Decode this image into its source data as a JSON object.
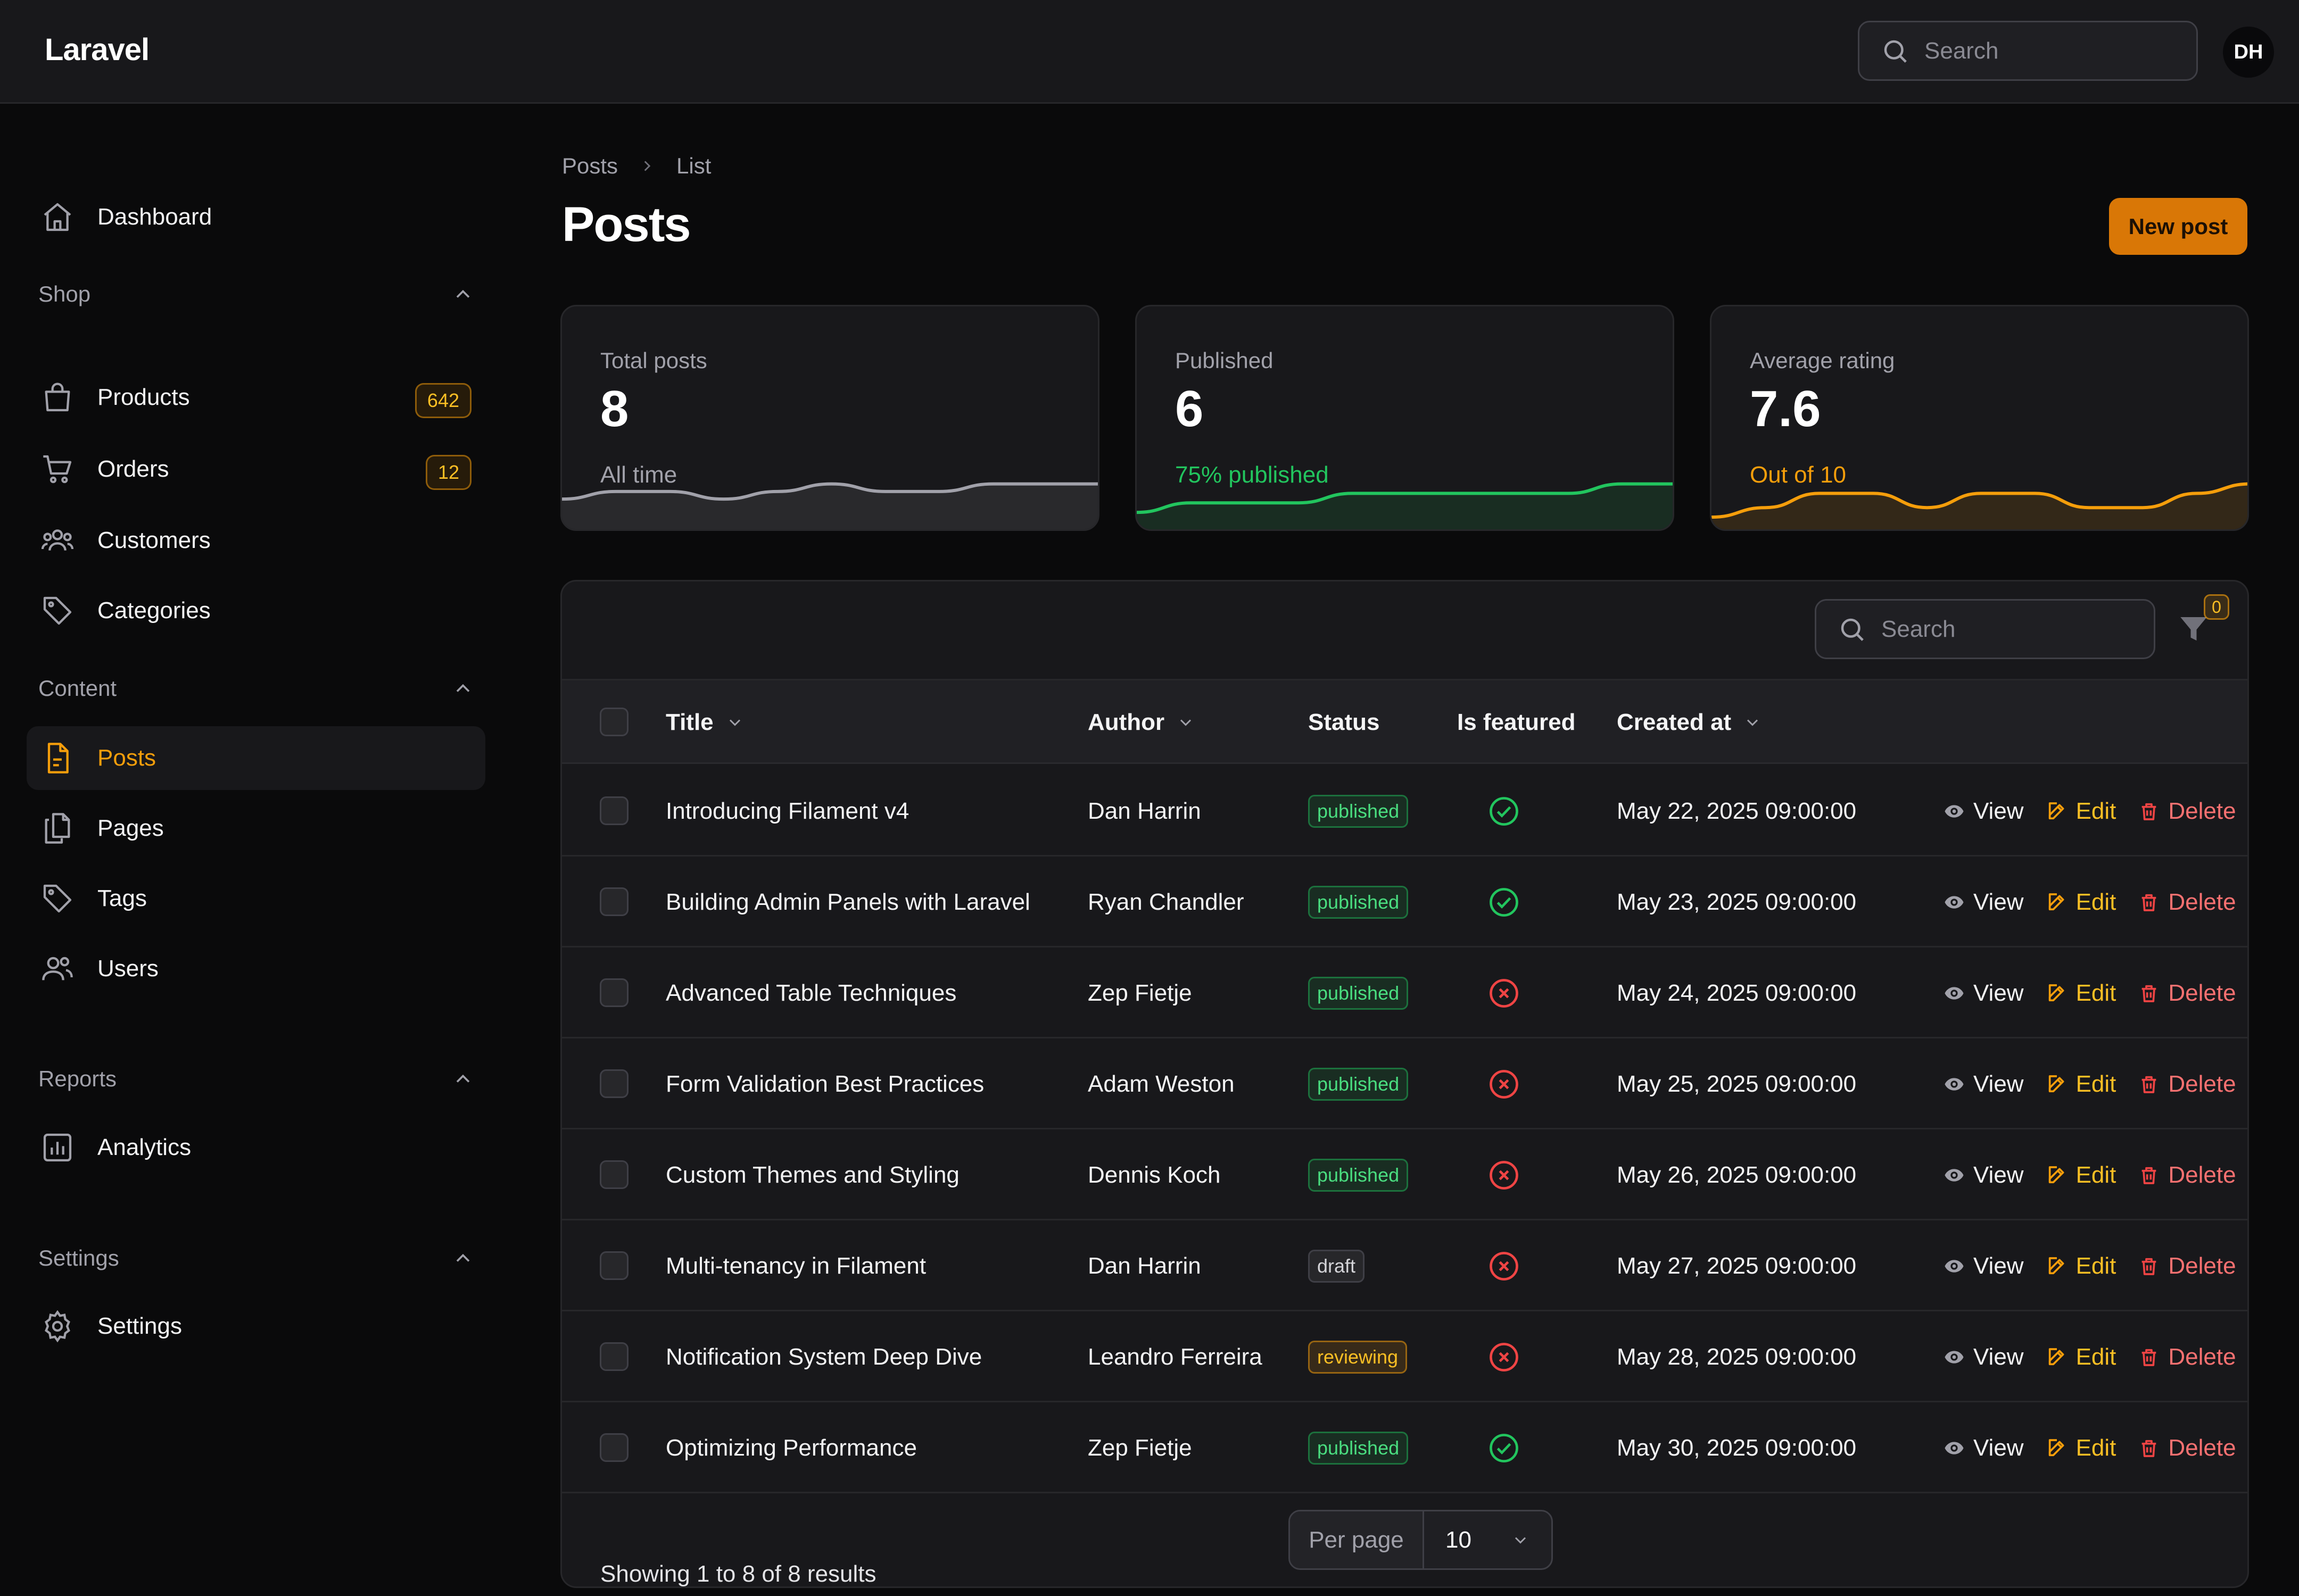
{
  "app": {
    "brand": "Laravel",
    "user_initials": "DH"
  },
  "topbar": {
    "search_placeholder": "Search"
  },
  "sidebar": {
    "dashboard": "Dashboard",
    "groups": {
      "shop": "Shop",
      "content": "Content",
      "reports": "Reports",
      "settings": "Settings"
    },
    "items": {
      "products": "Products",
      "products_badge": "642",
      "orders": "Orders",
      "orders_badge": "12",
      "customers": "Customers",
      "categories": "Categories",
      "posts": "Posts",
      "pages": "Pages",
      "tags": "Tags",
      "users": "Users",
      "analytics": "Analytics",
      "settings": "Settings"
    }
  },
  "breadcrumb": {
    "first": "Posts",
    "second": "List"
  },
  "header": {
    "title": "Posts",
    "new_button": "New post"
  },
  "stats": [
    {
      "label": "Total posts",
      "value": "8",
      "description": "All time",
      "color": "#a1a1aa",
      "trend": [
        3,
        4,
        4,
        3,
        4,
        5,
        4,
        4,
        5,
        5,
        5
      ]
    },
    {
      "label": "Published",
      "value": "6",
      "description": "75% published",
      "color": "#22c55e",
      "trend": [
        1,
        2,
        2,
        2,
        3,
        3,
        3,
        3,
        3,
        4,
        4
      ]
    },
    {
      "label": "Average rating",
      "value": "7.6",
      "description": "Out of 10",
      "color": "#f59e0b",
      "trend": [
        1,
        3,
        6,
        6,
        3,
        6,
        6,
        3,
        3,
        6,
        8
      ]
    }
  ],
  "table": {
    "search_placeholder": "Search",
    "filter_count": "0",
    "columns": {
      "title": "Title",
      "author": "Author",
      "status": "Status",
      "featured": "Is featured",
      "created": "Created at"
    },
    "actions": {
      "view": "View",
      "edit": "Edit",
      "delete": "Delete"
    },
    "rows": [
      {
        "title": "Introducing Filament v4",
        "author": "Dan Harrin",
        "status": "published",
        "featured": true,
        "created": "May 22, 2025 09:00:00"
      },
      {
        "title": "Building Admin Panels with Laravel",
        "author": "Ryan Chandler",
        "status": "published",
        "featured": true,
        "created": "May 23, 2025 09:00:00"
      },
      {
        "title": "Advanced Table Techniques",
        "author": "Zep Fietje",
        "status": "published",
        "featured": false,
        "created": "May 24, 2025 09:00:00"
      },
      {
        "title": "Form Validation Best Practices",
        "author": "Adam Weston",
        "status": "published",
        "featured": false,
        "created": "May 25, 2025 09:00:00"
      },
      {
        "title": "Custom Themes and Styling",
        "author": "Dennis Koch",
        "status": "published",
        "featured": false,
        "created": "May 26, 2025 09:00:00"
      },
      {
        "title": "Multi-tenancy in Filament",
        "author": "Dan Harrin",
        "status": "draft",
        "featured": false,
        "created": "May 27, 2025 09:00:00"
      },
      {
        "title": "Notification System Deep Dive",
        "author": "Leandro Ferreira",
        "status": "reviewing",
        "featured": false,
        "created": "May 28, 2025 09:00:00"
      },
      {
        "title": "Optimizing Performance",
        "author": "Zep Fietje",
        "status": "published",
        "featured": true,
        "created": "May 30, 2025 09:00:00"
      }
    ],
    "footer": {
      "showing": "Showing 1 to 8 of 8 results",
      "per_page_label": "Per page",
      "per_page_value": "10"
    }
  }
}
